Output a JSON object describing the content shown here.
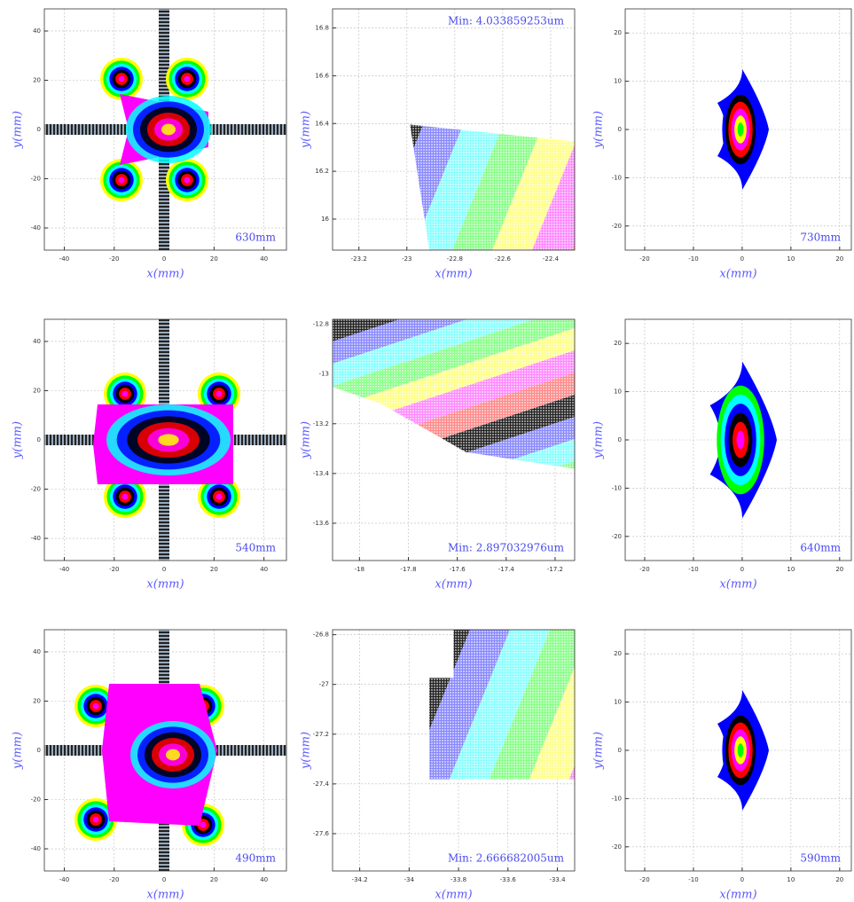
{
  "chart_data": [
    {
      "type": "contour",
      "xlabel": "x(mm)",
      "ylabel": "y(mm)",
      "annotation": "630mm",
      "xlim": [
        -48,
        49
      ],
      "ylim": [
        -49,
        49
      ],
      "xticks": [
        -40,
        -20,
        0,
        20,
        40
      ],
      "yticks": [
        -40,
        -20,
        0,
        20,
        40
      ],
      "grid": true
    },
    {
      "type": "contour",
      "xlabel": "x(mm)",
      "ylabel": "y(mm)",
      "annotation": "Min: 4.033859253um",
      "xlim": [
        -23.31,
        -22.3
      ],
      "ylim": [
        15.87,
        16.88
      ],
      "xticks": [
        -23.2,
        -23,
        -22.8,
        -22.6,
        -22.4
      ],
      "yticks": [
        16,
        16.2,
        16.4,
        16.6,
        16.8
      ],
      "grid": true
    },
    {
      "type": "contour",
      "xlabel": "x(mm)",
      "ylabel": "y(mm)",
      "annotation": "730mm",
      "xlim": [
        -24,
        22.4
      ],
      "ylim": [
        -25,
        25
      ],
      "xticks": [
        -20,
        -10,
        0,
        10,
        20
      ],
      "yticks": [
        -20,
        -10,
        0,
        10,
        20
      ],
      "grid": true
    },
    {
      "type": "contour",
      "xlabel": "x(mm)",
      "ylabel": "y(mm)",
      "annotation": "540mm",
      "xlim": [
        -48,
        49
      ],
      "ylim": [
        -49,
        49
      ],
      "xticks": [
        -40,
        -20,
        0,
        20,
        40
      ],
      "yticks": [
        -40,
        -20,
        0,
        20,
        40
      ],
      "grid": true
    },
    {
      "type": "contour",
      "xlabel": "x(mm)",
      "ylabel": "y(mm)",
      "annotation": "Min: 2.897032976um",
      "xlim": [
        -18.11,
        -17.12
      ],
      "ylim": [
        -13.75,
        -12.78
      ],
      "xticks": [
        -18,
        -17.8,
        -17.6,
        -17.4,
        -17.2
      ],
      "yticks": [
        -13.6,
        -13.4,
        -13.2,
        -13,
        -12.8
      ],
      "grid": true
    },
    {
      "type": "contour",
      "xlabel": "x(mm)",
      "ylabel": "y(mm)",
      "annotation": "640mm",
      "xlim": [
        -24,
        22.4
      ],
      "ylim": [
        -25,
        25
      ],
      "xticks": [
        -20,
        -10,
        0,
        10,
        20
      ],
      "yticks": [
        -20,
        -10,
        0,
        10,
        20
      ],
      "grid": true
    },
    {
      "type": "contour",
      "xlabel": "x(mm)",
      "ylabel": "y(mm)",
      "annotation": "490mm",
      "xlim": [
        -48,
        49
      ],
      "ylim": [
        -49,
        49
      ],
      "xticks": [
        -40,
        -20,
        0,
        20,
        40
      ],
      "yticks": [
        -40,
        -20,
        0,
        20,
        40
      ],
      "grid": true
    },
    {
      "type": "contour",
      "xlabel": "x(mm)",
      "ylabel": "y(mm)",
      "annotation": "Min: 2.666682005um",
      "xlim": [
        -34.31,
        -33.33
      ],
      "ylim": [
        -27.75,
        -26.78
      ],
      "xticks": [
        -34.2,
        -34,
        -33.8,
        -33.6,
        -33.4
      ],
      "yticks": [
        -27.6,
        -27.4,
        -27.2,
        -27,
        -26.8
      ],
      "grid": true
    },
    {
      "type": "contour",
      "xlabel": "x(mm)",
      "ylabel": "y(mm)",
      "annotation": "590mm",
      "xlim": [
        -24,
        22.4
      ],
      "ylim": [
        -25,
        25
      ],
      "xticks": [
        -20,
        -10,
        0,
        10,
        20
      ],
      "yticks": [
        -20,
        -10,
        0,
        10,
        20
      ],
      "grid": true
    }
  ]
}
